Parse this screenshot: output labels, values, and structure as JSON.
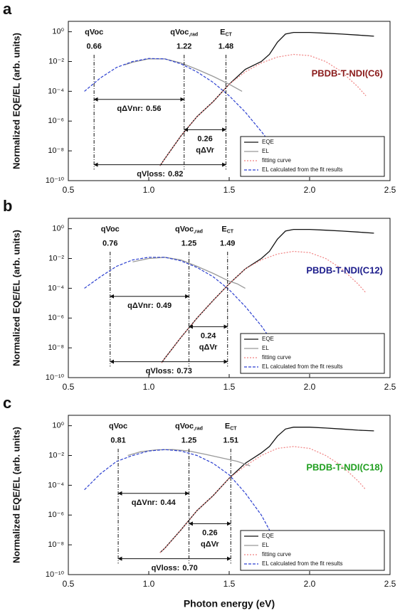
{
  "chart_data": [
    {
      "type": "line",
      "panel": "a",
      "log_y": true,
      "legend": "lower right",
      "ylabel": "Normalized EQE/EL (arb. units)",
      "xlim": [
        0.5,
        2.5
      ],
      "xticks": [
        0.5,
        {
          "value": 1,
          "label": "1.0"
        },
        1.5,
        {
          "value": 2,
          "label": "2.0"
        },
        2.5
      ],
      "ylim": [
        1e-10,
        5
      ],
      "yticks": [
        {
          "value": 1,
          "label": "10⁰"
        },
        {
          "value": 0.01,
          "label": "10⁻²"
        },
        {
          "value": 0.0001,
          "label": "10⁻⁴"
        },
        {
          "value": 1e-06,
          "label": "10⁻⁶"
        },
        {
          "value": 1e-08,
          "label": "10⁻⁸"
        },
        {
          "value": 1e-10,
          "label": "10⁻¹⁰"
        }
      ],
      "sample": {
        "label": "PBDB-T-NDI(C6)",
        "color": "#8b1c1c"
      },
      "markers": [
        {
          "label": "qVoc",
          "value": 0.66
        },
        {
          "label": "qVoc",
          "label_sub": ",rad",
          "value": 1.22
        },
        {
          "label": "E",
          "label_sub": "CT",
          "value": 1.48
        }
      ],
      "nr_loss": {
        "label": "qΔVnr:",
        "value": 0.56
      },
      "r_loss": {
        "label": "qΔVr",
        "value": 0.26
      },
      "total_loss": {
        "label": "qVloss:",
        "value": 0.82
      },
      "series": [
        {
          "name": "EQE",
          "color": "#111111",
          "style": "solid",
          "x": [
            1.07,
            1.1,
            1.2,
            1.3,
            1.4,
            1.5,
            1.6,
            1.7,
            1.75,
            1.8,
            1.85,
            1.9,
            2.0,
            2.1,
            2.2,
            2.3,
            2.4
          ],
          "values": [
            1e-09,
            3e-09,
            1e-07,
            2e-06,
            2e-05,
            0.0003,
            0.003,
            0.01,
            0.03,
            0.2,
            0.7,
            0.9,
            0.9,
            0.8,
            0.7,
            0.6,
            0.5
          ]
        },
        {
          "name": "EL",
          "color": "#999999",
          "style": "solid",
          "x": [
            0.85,
            0.9,
            1.0,
            1.1,
            1.2,
            1.3,
            1.4,
            1.5,
            1.55,
            1.58
          ],
          "values": [
            0.006,
            0.009,
            0.015,
            0.015,
            0.008,
            0.003,
            0.001,
            0.0003,
            0.00015,
            0.0001
          ]
        },
        {
          "name": "fitting curve",
          "color": "#f08080",
          "style": "dotted",
          "x": [
            1.07,
            1.1,
            1.2,
            1.3,
            1.4,
            1.5,
            1.6,
            1.7,
            1.8,
            1.9,
            2.0,
            2.1,
            2.2,
            2.3,
            2.35
          ],
          "values": [
            1e-09,
            3e-09,
            1e-07,
            2e-06,
            2e-05,
            0.0003,
            0.002,
            0.008,
            0.02,
            0.03,
            0.025,
            0.01,
            0.002,
            0.0002,
            5e-05
          ]
        },
        {
          "name": "EL calculated from the fit results",
          "color": "#2b3fd0",
          "style": "dashed",
          "x": [
            0.6,
            0.7,
            0.8,
            0.9,
            1.0,
            1.1,
            1.2,
            1.3,
            1.4,
            1.5,
            1.6,
            1.7,
            1.75
          ],
          "values": [
            0.0001,
            0.0008,
            0.004,
            0.01,
            0.016,
            0.015,
            0.007,
            0.002,
            0.0004,
            5e-05,
            4e-06,
            2e-07,
            4e-08
          ]
        }
      ]
    },
    {
      "type": "line",
      "panel": "b",
      "log_y": true,
      "legend": "lower right",
      "ylabel": "Normalized EQE/EL (arb. units)",
      "xlim": [
        0.5,
        2.5
      ],
      "xticks": [
        0.5,
        {
          "value": 1,
          "label": "1.0"
        },
        1.5,
        {
          "value": 2,
          "label": "2.0"
        },
        2.5
      ],
      "ylim": [
        1e-10,
        5
      ],
      "yticks": [
        {
          "value": 1,
          "label": "10⁰"
        },
        {
          "value": 0.01,
          "label": "10⁻²"
        },
        {
          "value": 0.0001,
          "label": "10⁻⁴"
        },
        {
          "value": 1e-06,
          "label": "10⁻⁶"
        },
        {
          "value": 1e-08,
          "label": "10⁻⁸"
        },
        {
          "value": 1e-10,
          "label": "10⁻¹⁰"
        }
      ],
      "sample": {
        "label": "PBDB-T-NDI(C12)",
        "color": "#1c1c8b"
      },
      "markers": [
        {
          "label": "qVoc",
          "value": 0.76
        },
        {
          "label": "qVoc",
          "label_sub": ",rad",
          "value": 1.25
        },
        {
          "label": "E",
          "label_sub": "CT",
          "value": 1.49
        }
      ],
      "nr_loss": {
        "label": "qΔVnr:",
        "value": 0.49
      },
      "r_loss": {
        "label": "qΔVr",
        "value": 0.24
      },
      "total_loss": {
        "label": "qVloss:",
        "value": 0.73
      },
      "series": [
        {
          "name": "EQE",
          "color": "#111111",
          "style": "solid",
          "x": [
            1.08,
            1.1,
            1.2,
            1.3,
            1.4,
            1.5,
            1.6,
            1.7,
            1.75,
            1.8,
            1.85,
            1.9,
            2.0,
            2.1,
            2.2,
            2.3,
            2.4
          ],
          "values": [
            1e-09,
            2e-09,
            5e-08,
            1e-06,
            1.5e-05,
            0.0002,
            0.002,
            0.01,
            0.03,
            0.2,
            0.7,
            0.9,
            0.9,
            0.8,
            0.7,
            0.6,
            0.5
          ]
        },
        {
          "name": "EL",
          "color": "#999999",
          "style": "solid",
          "x": [
            0.9,
            1.0,
            1.1,
            1.2,
            1.3,
            1.4,
            1.5,
            1.55,
            1.6
          ],
          "values": [
            0.006,
            0.01,
            0.012,
            0.008,
            0.003,
            0.001,
            0.0003,
            0.0002,
            0.0001
          ]
        },
        {
          "name": "fitting curve",
          "color": "#f08080",
          "style": "dotted",
          "x": [
            1.08,
            1.1,
            1.2,
            1.3,
            1.4,
            1.5,
            1.6,
            1.7,
            1.8,
            1.9,
            2.0,
            2.1,
            2.2,
            2.3,
            2.35
          ],
          "values": [
            1e-09,
            2e-09,
            5e-08,
            1e-06,
            1.5e-05,
            0.0002,
            0.002,
            0.008,
            0.02,
            0.03,
            0.025,
            0.01,
            0.002,
            0.0002,
            5e-05
          ]
        },
        {
          "name": "EL calculated from the fit results",
          "color": "#2b3fd0",
          "style": "dashed",
          "x": [
            0.6,
            0.7,
            0.8,
            0.9,
            1.0,
            1.1,
            1.2,
            1.3,
            1.4,
            1.5,
            1.6,
            1.7,
            1.75
          ],
          "values": [
            0.0001,
            0.0006,
            0.003,
            0.008,
            0.012,
            0.012,
            0.007,
            0.0025,
            0.0006,
            8e-05,
            6e-06,
            3e-07,
            5e-08
          ]
        }
      ]
    },
    {
      "type": "line",
      "panel": "c",
      "log_y": true,
      "legend": "lower right",
      "ylabel": "Normalized EQE/EL (arb. units)",
      "xlabel": "Photon energy (eV)",
      "xlim": [
        0.5,
        2.5
      ],
      "xticks": [
        0.5,
        {
          "value": 1,
          "label": "1.0"
        },
        1.5,
        {
          "value": 2,
          "label": "2.0"
        },
        2.5
      ],
      "ylim": [
        1e-10,
        5
      ],
      "yticks": [
        {
          "value": 1,
          "label": "10⁰"
        },
        {
          "value": 0.01,
          "label": "10⁻²"
        },
        {
          "value": 0.0001,
          "label": "10⁻⁴"
        },
        {
          "value": 1e-06,
          "label": "10⁻⁶"
        },
        {
          "value": 1e-08,
          "label": "10⁻⁸"
        },
        {
          "value": 1e-10,
          "label": "10⁻¹⁰"
        }
      ],
      "sample": {
        "label": "PBDB-T-NDI(C18)",
        "color": "#22a022"
      },
      "markers": [
        {
          "label": "qVoc",
          "value": 0.81
        },
        {
          "label": "qVoc",
          "label_sub": ",rad",
          "value": 1.25
        },
        {
          "label": "E",
          "label_sub": "CT",
          "value": 1.51
        }
      ],
      "nr_loss": {
        "label": "qΔVnr:",
        "value": 0.44
      },
      "r_loss": {
        "label": "qΔVr",
        "value": 0.26
      },
      "total_loss": {
        "label": "qVloss:",
        "value": 0.7,
        "value_label": "0.70"
      },
      "series": [
        {
          "name": "EQE",
          "color": "#111111",
          "style": "solid",
          "x": [
            1.07,
            1.1,
            1.2,
            1.3,
            1.4,
            1.5,
            1.6,
            1.7,
            1.75,
            1.8,
            1.85,
            1.9,
            2.0,
            2.1,
            2.2,
            2.3,
            2.4
          ],
          "values": [
            3e-09,
            6e-09,
            1e-07,
            2e-06,
            2e-05,
            0.0003,
            0.003,
            0.015,
            0.04,
            0.2,
            0.6,
            0.8,
            0.8,
            0.7,
            0.6,
            0.5,
            0.45
          ]
        },
        {
          "name": "EL",
          "color": "#999999",
          "style": "solid",
          "x": [
            0.87,
            0.95,
            1.05,
            1.15,
            1.25,
            1.35,
            1.45,
            1.55,
            1.63
          ],
          "values": [
            0.01,
            0.018,
            0.024,
            0.025,
            0.02,
            0.012,
            0.007,
            0.004,
            0.002
          ]
        },
        {
          "name": "fitting curve",
          "color": "#f08080",
          "style": "dotted",
          "x": [
            1.07,
            1.1,
            1.2,
            1.3,
            1.4,
            1.5,
            1.6,
            1.7,
            1.8,
            1.9,
            2.0,
            2.1,
            2.2,
            2.3,
            2.35
          ],
          "values": [
            3e-09,
            6e-09,
            1e-07,
            2e-06,
            2e-05,
            0.0003,
            0.002,
            0.01,
            0.03,
            0.04,
            0.03,
            0.01,
            0.002,
            0.0002,
            5e-05
          ]
        },
        {
          "name": "EL calculated from the fit results",
          "color": "#2b3fd0",
          "style": "dashed",
          "x": [
            0.6,
            0.7,
            0.8,
            0.9,
            1.0,
            1.1,
            1.2,
            1.3,
            1.4,
            1.5,
            1.6,
            1.7,
            1.8
          ],
          "values": [
            5e-05,
            0.0006,
            0.004,
            0.01,
            0.02,
            0.025,
            0.02,
            0.01,
            0.003,
            0.0005,
            3e-05,
            1e-06,
            1e-08
          ]
        }
      ]
    }
  ]
}
